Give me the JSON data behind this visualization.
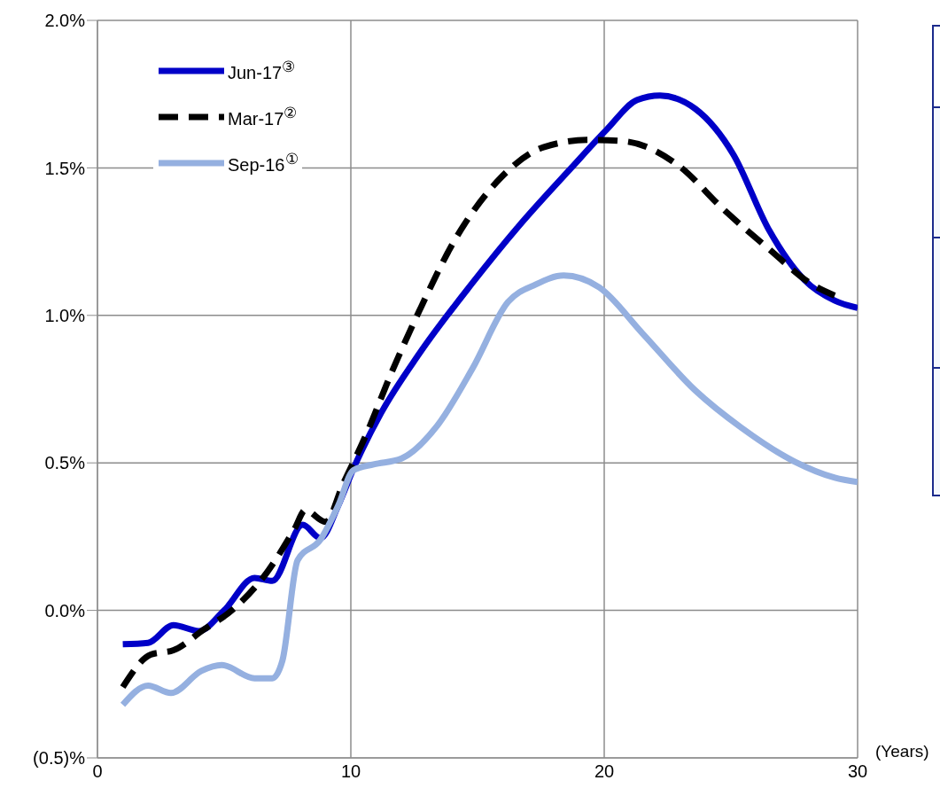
{
  "chart_data": {
    "type": "line",
    "xlabel": "(Years)",
    "xlim": [
      0,
      30
    ],
    "xticks": [
      0,
      10,
      20,
      30
    ],
    "ylim": [
      -0.5,
      2.0
    ],
    "yticks": [
      {
        "value": -0.5,
        "label": "(0.5)%"
      },
      {
        "value": 0,
        "label": "0.0%"
      },
      {
        "value": 0.5,
        "label": "0.5%"
      },
      {
        "value": 1.0,
        "label": "1.0%"
      },
      {
        "value": 1.5,
        "label": "1.5%"
      },
      {
        "value": 2.0,
        "label": "2.0%"
      }
    ],
    "grid": true,
    "legend": "top left",
    "series": [
      {
        "name": "Jun-17$^{③}$",
        "color": "#0000c8",
        "line_style": "solid",
        "x": [
          1,
          2,
          3,
          4,
          5,
          6.2,
          6.9,
          8.1,
          8.8,
          9.5,
          10.1,
          11.2,
          12.7,
          14.8,
          16.6,
          18.7,
          20.1,
          21.3,
          22.2,
          23.6,
          25.1,
          26.5,
          27.9,
          29.1,
          30
        ],
        "values": [
          -0.115,
          -0.11,
          -0.05,
          -0.07,
          0.0,
          0.11,
          0.1,
          0.29,
          0.245,
          0.355,
          0.48,
          0.67,
          0.87,
          1.11,
          1.3,
          1.5,
          1.63,
          1.73,
          1.745,
          1.7,
          1.545,
          1.29,
          1.12,
          1.05,
          1.025
        ]
      },
      {
        "name": "Mar-17$^{②}$",
        "color": "#000000",
        "line_style": "dashed",
        "x": [
          1,
          2.1,
          3,
          4.2,
          5.3,
          6.7,
          7.8,
          8.2,
          9,
          9.7,
          10.6,
          11.6,
          12.7,
          14.1,
          15.9,
          17.6,
          19.4,
          20.8,
          22.9,
          24.7,
          26.5,
          28.2,
          29.3
        ],
        "values": [
          -0.26,
          -0.15,
          -0.135,
          -0.065,
          0.0,
          0.13,
          0.28,
          0.34,
          0.3,
          0.43,
          0.595,
          0.805,
          1.015,
          1.255,
          1.465,
          1.57,
          1.595,
          1.59,
          1.51,
          1.36,
          1.225,
          1.105,
          1.06
        ]
      },
      {
        "name": "Sep-16$^{①}$",
        "color": "#95b0e0",
        "line_style": "solid",
        "x": [
          1,
          2,
          2.9,
          4.1,
          4.9,
          6.2,
          6.9,
          7.3,
          7.9,
          8.8,
          9.5,
          10.1,
          10.9,
          12,
          13.4,
          14.8,
          16.2,
          17.3,
          18.4,
          19.8,
          21.5,
          23.6,
          25.4,
          27.5,
          29.1,
          30
        ],
        "values": [
          -0.32,
          -0.255,
          -0.28,
          -0.205,
          -0.185,
          -0.23,
          -0.23,
          -0.17,
          0.17,
          0.24,
          0.355,
          0.475,
          0.495,
          0.515,
          0.625,
          0.82,
          1.045,
          1.105,
          1.135,
          1.095,
          0.94,
          0.745,
          0.62,
          0.505,
          0.45,
          0.435
        ]
      }
    ]
  }
}
